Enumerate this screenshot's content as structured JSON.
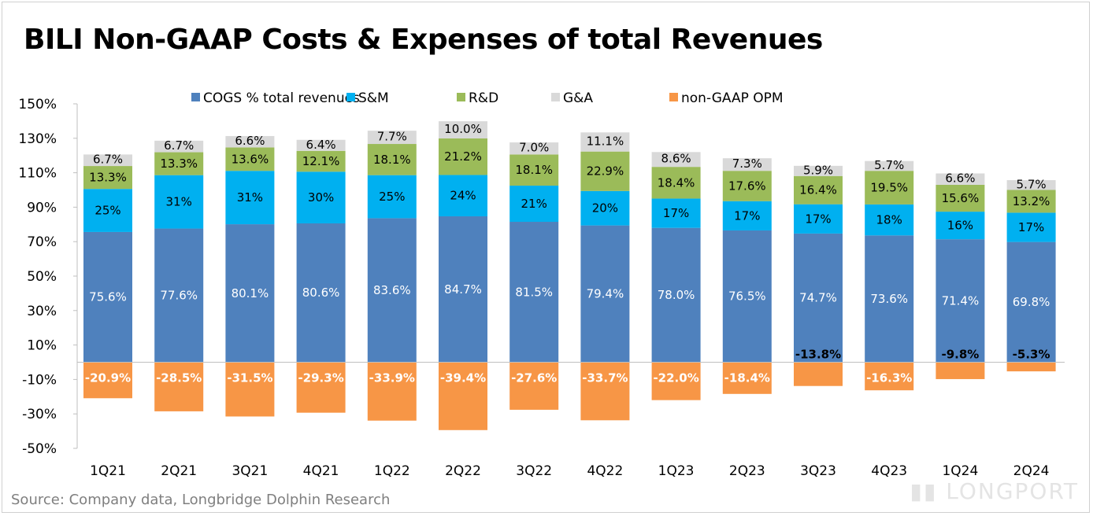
{
  "title": "BILI Non-GAAP Costs & Expenses of total Revenues",
  "source": "Source: Company data, Longbridge Dolphin Research",
  "watermark": "LONGPORT",
  "chart_data": {
    "type": "bar",
    "stacked": true,
    "title": "BILI Non-GAAP Costs & Expenses of total Revenues",
    "categories": [
      "1Q21",
      "2Q21",
      "3Q21",
      "4Q21",
      "1Q22",
      "2Q22",
      "3Q22",
      "4Q22",
      "1Q23",
      "2Q23",
      "3Q23",
      "4Q23",
      "1Q24",
      "2Q24"
    ],
    "series": [
      {
        "name": "COGS % total revenues",
        "color": "#4f81bd",
        "values": [
          75.6,
          77.6,
          80.1,
          80.6,
          83.6,
          84.7,
          81.5,
          79.4,
          78.0,
          76.5,
          74.7,
          73.6,
          71.4,
          69.8
        ],
        "labels": [
          "75.6%",
          "77.6%",
          "80.1%",
          "80.6%",
          "83.6%",
          "84.7%",
          "81.5%",
          "79.4%",
          "78.0%",
          "76.5%",
          "74.7%",
          "73.6%",
          "71.4%",
          "69.8%"
        ]
      },
      {
        "name": "S&M",
        "color": "#00b0f0",
        "values": [
          25,
          31,
          31,
          30,
          25,
          24,
          21,
          20,
          17,
          17,
          17,
          18,
          16,
          17
        ],
        "labels": [
          "25%",
          "31%",
          "31%",
          "30%",
          "25%",
          "24%",
          "21%",
          "20%",
          "17%",
          "17%",
          "17%",
          "18%",
          "16%",
          "17%"
        ]
      },
      {
        "name": "R&D",
        "color": "#9bbb59",
        "values": [
          13.3,
          13.3,
          13.6,
          12.1,
          18.1,
          21.2,
          18.1,
          22.9,
          18.4,
          17.6,
          16.4,
          19.5,
          15.6,
          13.2
        ],
        "labels": [
          "13.3%",
          "13.3%",
          "13.6%",
          "12.1%",
          "18.1%",
          "21.2%",
          "18.1%",
          "22.9%",
          "18.4%",
          "17.6%",
          "16.4%",
          "19.5%",
          "15.6%",
          "13.2%"
        ]
      },
      {
        "name": "G&A",
        "color": "#d9d9d9",
        "values": [
          6.7,
          6.7,
          6.6,
          6.4,
          7.7,
          10.0,
          7.0,
          11.1,
          8.6,
          7.3,
          5.9,
          5.7,
          6.6,
          5.7
        ],
        "labels": [
          "6.7%",
          "6.7%",
          "6.6%",
          "6.4%",
          "7.7%",
          "10.0%",
          "7.0%",
          "11.1%",
          "8.6%",
          "7.3%",
          "5.9%",
          "5.7%",
          "6.6%",
          "5.7%"
        ]
      },
      {
        "name": "non-GAAP OPM",
        "color": "#f79646",
        "values": [
          -20.9,
          -28.5,
          -31.5,
          -29.3,
          -33.9,
          -39.4,
          -27.6,
          -33.7,
          -22.0,
          -18.4,
          -13.8,
          -16.3,
          -9.8,
          -5.3
        ],
        "labels": [
          "-20.9%",
          "-28.5%",
          "-31.5%",
          "-29.3%",
          "-33.9%",
          "-39.4%",
          "-27.6%",
          "-33.7%",
          "-22.0%",
          "-18.4%",
          "-13.8%",
          "-16.3%",
          "-9.8%",
          "-5.3%"
        ]
      }
    ],
    "yticks": [
      "150%",
      "130%",
      "110%",
      "90%",
      "70%",
      "50%",
      "30%",
      "10%",
      "-10%",
      "-30%",
      "-50%"
    ],
    "ytick_values": [
      150,
      130,
      110,
      90,
      70,
      50,
      30,
      10,
      -10,
      -30,
      -50
    ],
    "ylim": [
      -50,
      150
    ],
    "legend": "top",
    "grid": false
  }
}
